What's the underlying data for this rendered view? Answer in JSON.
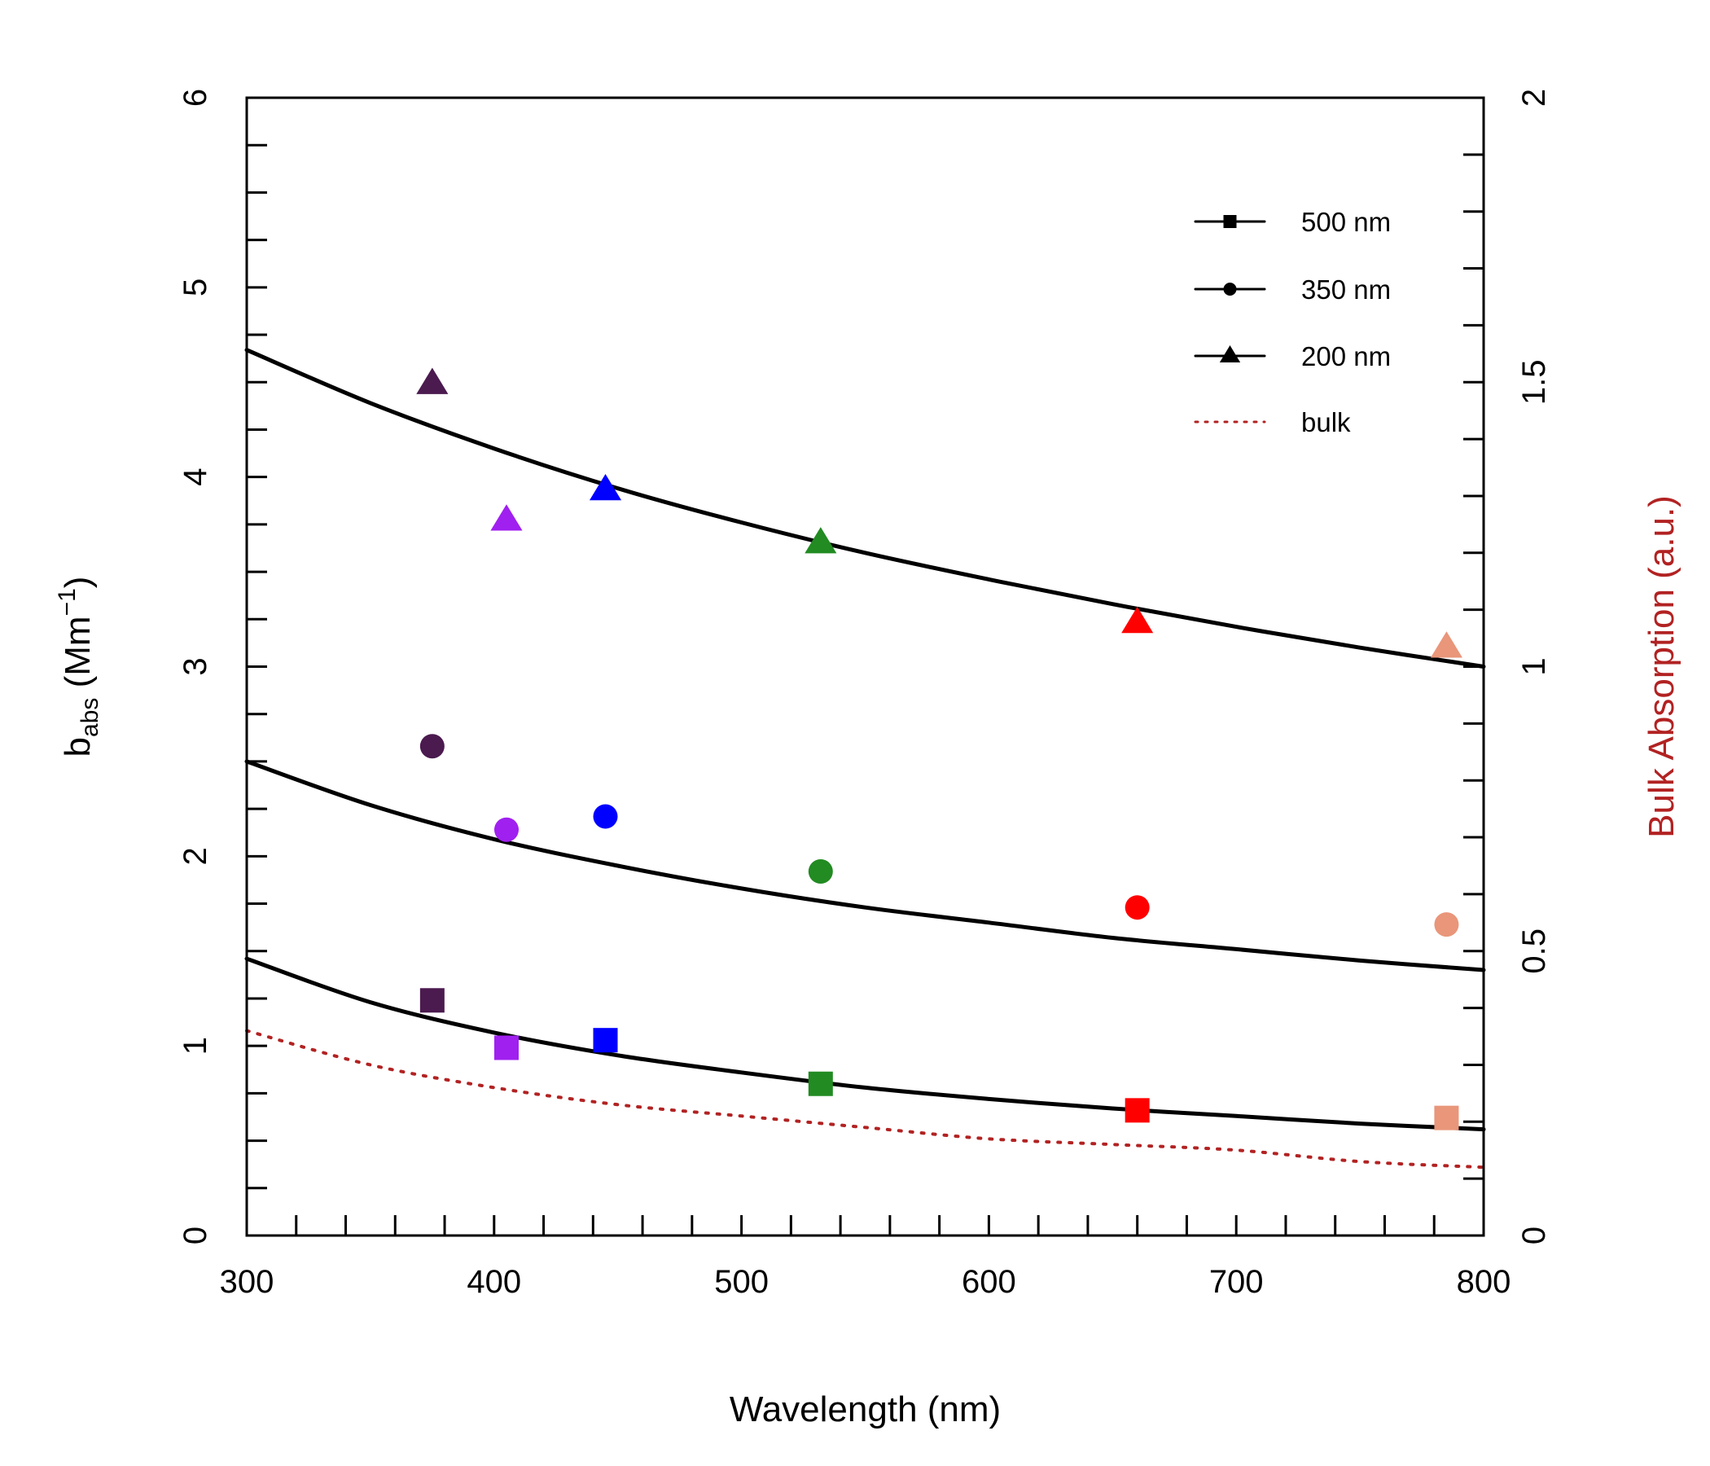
{
  "chart_data": {
    "type": "scatter",
    "xlabel": "Wavelength (nm)",
    "ylabel": {
      "base": "b",
      "sub": "abs",
      "unit_open": " (Mm",
      "sup": "−1",
      "unit_close": ")"
    },
    "y2label": "Bulk Absorption (a.u.)",
    "xlim": [
      300,
      800
    ],
    "ylim": [
      0,
      6
    ],
    "y2lim": [
      0,
      2
    ],
    "x_ticks": [
      300,
      400,
      500,
      600,
      700,
      800
    ],
    "x_tick_labels": [
      "300",
      "400",
      "500",
      "600",
      "700",
      "800"
    ],
    "y_ticks": [
      0,
      1,
      2,
      3,
      4,
      5,
      6
    ],
    "y_tick_labels": [
      "0",
      "1",
      "2",
      "3",
      "4",
      "5",
      "6"
    ],
    "y2_ticks": [
      0,
      0.5,
      1,
      1.5,
      2
    ],
    "y2_tick_labels": [
      "0",
      "0.5",
      "1",
      "1.5",
      "2"
    ],
    "grid": false,
    "legend_position": "top-right",
    "wavelengths": [
      375,
      405,
      445,
      532,
      660,
      785
    ],
    "point_colors": [
      "#4B1A4F",
      "#A020F0",
      "#0000FF",
      "#228B22",
      "#FF0000",
      "#E9967A"
    ],
    "series": [
      {
        "name": "500 nm",
        "marker": "square",
        "points": [
          1.24,
          0.99,
          1.03,
          0.8,
          0.66,
          0.62
        ],
        "fit": {
          "x": [
            300,
            350,
            400,
            450,
            500,
            550,
            600,
            650,
            700,
            750,
            800
          ],
          "y": [
            1.46,
            1.23,
            1.07,
            0.95,
            0.86,
            0.78,
            0.72,
            0.67,
            0.63,
            0.59,
            0.56
          ]
        }
      },
      {
        "name": "350 nm",
        "marker": "circle",
        "points": [
          2.58,
          2.14,
          2.21,
          1.92,
          1.73,
          1.64
        ],
        "fit": {
          "x": [
            300,
            350,
            400,
            450,
            500,
            550,
            600,
            650,
            700,
            750,
            800
          ],
          "y": [
            2.5,
            2.27,
            2.09,
            1.95,
            1.83,
            1.73,
            1.65,
            1.57,
            1.51,
            1.45,
            1.4
          ]
        }
      },
      {
        "name": "200 nm",
        "marker": "triangle",
        "points": [
          4.49,
          3.77,
          3.93,
          3.65,
          3.23,
          3.1
        ],
        "fit": {
          "x": [
            300,
            350,
            400,
            450,
            500,
            550,
            600,
            650,
            700,
            750,
            800
          ],
          "y": [
            4.67,
            4.39,
            4.15,
            3.94,
            3.76,
            3.6,
            3.46,
            3.33,
            3.21,
            3.1,
            3.0
          ]
        }
      },
      {
        "name": "bulk",
        "marker": "none",
        "line": "dotted",
        "color": "#B22222",
        "axis": "right",
        "fit": {
          "x": [
            300,
            350,
            400,
            450,
            500,
            550,
            600,
            650,
            700,
            750,
            800
          ],
          "y": [
            0.36,
            0.3,
            0.26,
            0.23,
            0.21,
            0.19,
            0.17,
            0.16,
            0.15,
            0.13,
            0.12
          ]
        }
      }
    ]
  },
  "colors": {
    "axis": "#000000",
    "fit_line": "#000000",
    "bulk": "#B22222",
    "y2label": "#B22222"
  }
}
